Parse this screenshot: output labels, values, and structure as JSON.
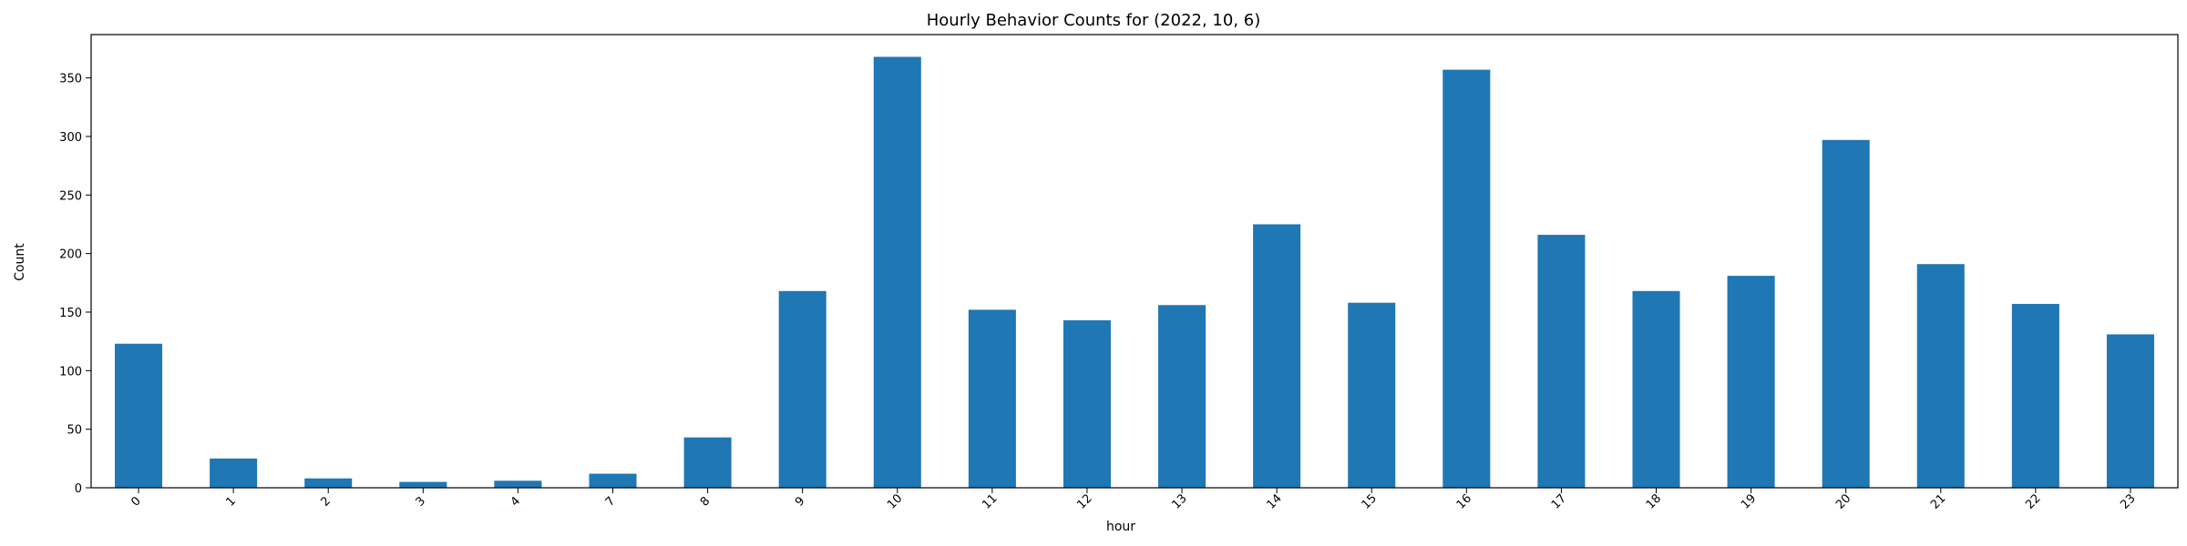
{
  "chart_data": {
    "type": "bar",
    "title": "Hourly Behavior Counts for (2022, 10, 6)",
    "xlabel": "hour",
    "ylabel": "Count",
    "categories": [
      "0",
      "1",
      "2",
      "3",
      "4",
      "7",
      "8",
      "9",
      "10",
      "11",
      "12",
      "13",
      "14",
      "15",
      "16",
      "17",
      "18",
      "19",
      "20",
      "21",
      "22",
      "23"
    ],
    "values": [
      123,
      25,
      8,
      5,
      6,
      12,
      43,
      168,
      368,
      152,
      143,
      156,
      225,
      158,
      357,
      216,
      168,
      181,
      297,
      191,
      157,
      131
    ],
    "ylim": [
      0,
      387
    ],
    "yticks": [
      0,
      50,
      100,
      150,
      200,
      250,
      300,
      350
    ],
    "grid": false,
    "bar_color": "#1f77b4"
  }
}
